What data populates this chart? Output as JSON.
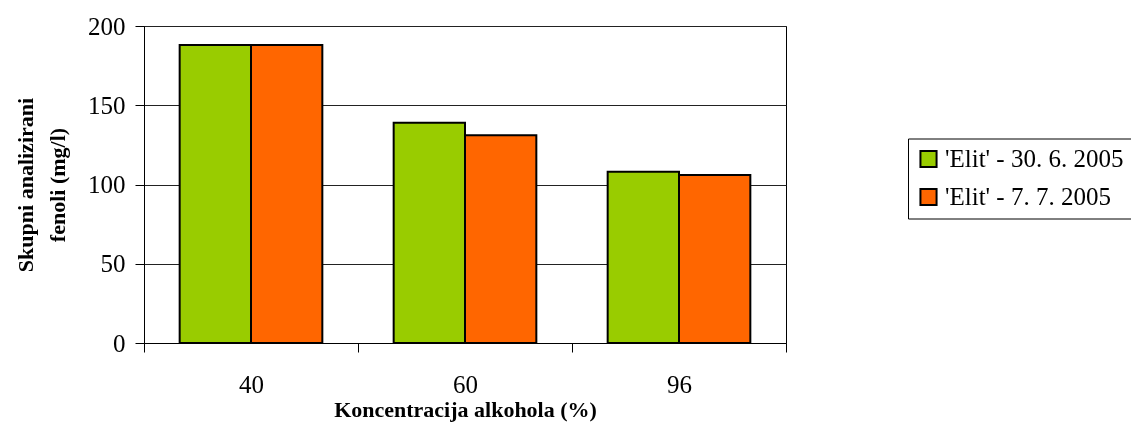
{
  "chart_data": {
    "type": "bar",
    "xlabel": "Koncentracija alkohola (%)",
    "ylabel": "Skupni analizirani fenoli (mg/l)",
    "categories": [
      "40",
      "60",
      "96"
    ],
    "series": [
      {
        "name": "'Elit' - 30. 6. 2005",
        "color": "#99cc00",
        "values": [
          188,
          139,
          108
        ]
      },
      {
        "name": "'Elit' - 7. 7. 2005",
        "color": "#ff6600",
        "values": [
          188,
          131,
          106
        ]
      }
    ],
    "ylim": [
      0,
      200
    ],
    "yticks": [
      0,
      50,
      100,
      150,
      200
    ],
    "grid": "y",
    "legend": "right"
  }
}
